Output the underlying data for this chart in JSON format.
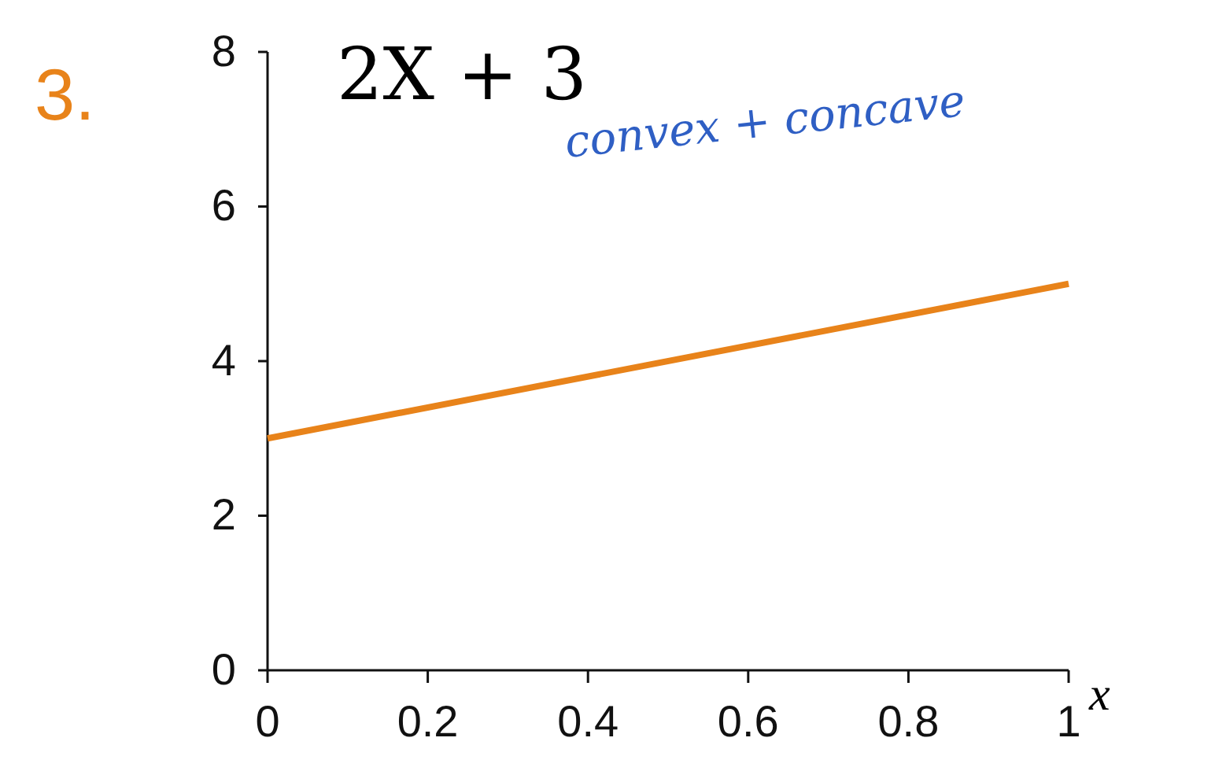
{
  "chart_data": {
    "type": "line",
    "title": "2X + 3",
    "xlabel": "x",
    "annotations": [
      "3.",
      "convex + concave"
    ],
    "x": [
      0,
      1
    ],
    "series": [
      {
        "color": "#e8831a",
        "values": [
          3,
          5
        ]
      }
    ],
    "xlim": [
      0,
      1
    ],
    "xticks": [
      0,
      0.2,
      0.4,
      0.6,
      0.8,
      1
    ],
    "ylim": [
      0,
      8
    ],
    "yticks": [
      0,
      2,
      4,
      6,
      8
    ],
    "grid": false,
    "marker": "none",
    "line_style": "solid"
  }
}
